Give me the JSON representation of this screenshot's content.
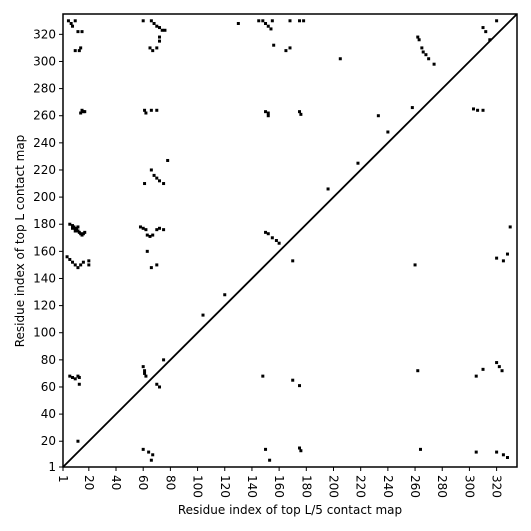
{
  "chart_data": {
    "type": "scatter",
    "xlabel": "Residue index of top L/5 contact map",
    "ylabel": "Residue index of top L contact map",
    "xlim": [
      1,
      335
    ],
    "ylim": [
      1,
      335
    ],
    "xticks": [
      1,
      20,
      40,
      60,
      80,
      100,
      120,
      140,
      160,
      180,
      200,
      220,
      240,
      260,
      280,
      300,
      320
    ],
    "yticks": [
      1,
      20,
      40,
      60,
      80,
      100,
      120,
      140,
      160,
      180,
      200,
      220,
      240,
      260,
      280,
      300,
      320
    ],
    "color": "#000000",
    "diagonal": true,
    "x": [
      5,
      7,
      8,
      10,
      12,
      15,
      10,
      13,
      14,
      15,
      16,
      14,
      17,
      6,
      8,
      9,
      10,
      11,
      12,
      13,
      14,
      15,
      16,
      17,
      8,
      10,
      12,
      4,
      6,
      8,
      10,
      12,
      14,
      16,
      20,
      20,
      6,
      8,
      10,
      12,
      13,
      13,
      12,
      60,
      66,
      68,
      70,
      72,
      74,
      76,
      65,
      67,
      70,
      72,
      72,
      61,
      62,
      66,
      70,
      66,
      68,
      70,
      72,
      75,
      78,
      61,
      58,
      60,
      62,
      63,
      65,
      67,
      70,
      72,
      75,
      63,
      66,
      70,
      60,
      61,
      61,
      62,
      70,
      72,
      75,
      60,
      64,
      67,
      66,
      145,
      148,
      150,
      152,
      154,
      156,
      155,
      130,
      150,
      152,
      152,
      175,
      176,
      150,
      152,
      155,
      158,
      160,
      168,
      175,
      178,
      165,
      168,
      205,
      233,
      218,
      196,
      120,
      104,
      148,
      170,
      175,
      150,
      153,
      175,
      176,
      262,
      263,
      265,
      266,
      268,
      270,
      274,
      258,
      303,
      306,
      310,
      260,
      264,
      262,
      305,
      310,
      320,
      322,
      324,
      312,
      310,
      315,
      320,
      330,
      320,
      325,
      328,
      320,
      325,
      328,
      305,
      240,
      170
    ],
    "y": [
      330,
      328,
      326,
      330,
      322,
      322,
      308,
      308,
      310,
      264,
      263,
      262,
      263,
      180,
      179,
      178,
      177,
      176,
      175,
      174,
      173,
      172,
      173,
      174,
      177,
      175,
      178,
      156,
      154,
      152,
      150,
      148,
      150,
      152,
      150,
      153,
      68,
      67,
      66,
      68,
      62,
      67,
      20,
      330,
      330,
      328,
      326,
      325,
      323,
      323,
      310,
      308,
      310,
      318,
      315,
      264,
      262,
      264,
      264,
      220,
      216,
      214,
      212,
      210,
      227,
      210,
      178,
      177,
      176,
      172,
      171,
      172,
      176,
      177,
      176,
      160,
      148,
      150,
      75,
      72,
      70,
      68,
      62,
      60,
      80,
      14,
      12,
      10,
      6,
      330,
      330,
      328,
      326,
      324,
      312,
      330,
      328,
      263,
      262,
      260,
      263,
      261,
      174,
      173,
      170,
      168,
      166,
      330,
      330,
      330,
      308,
      310,
      302,
      260,
      225,
      206,
      128,
      113,
      68,
      65,
      61,
      14,
      6,
      15,
      13,
      318,
      316,
      310,
      307,
      305,
      302,
      298,
      266,
      265,
      264,
      264,
      150,
      14,
      72,
      68,
      73,
      78,
      75,
      72,
      322,
      325,
      316,
      330,
      178,
      155,
      153,
      158,
      12,
      10,
      8,
      12,
      248,
      153
    ]
  }
}
